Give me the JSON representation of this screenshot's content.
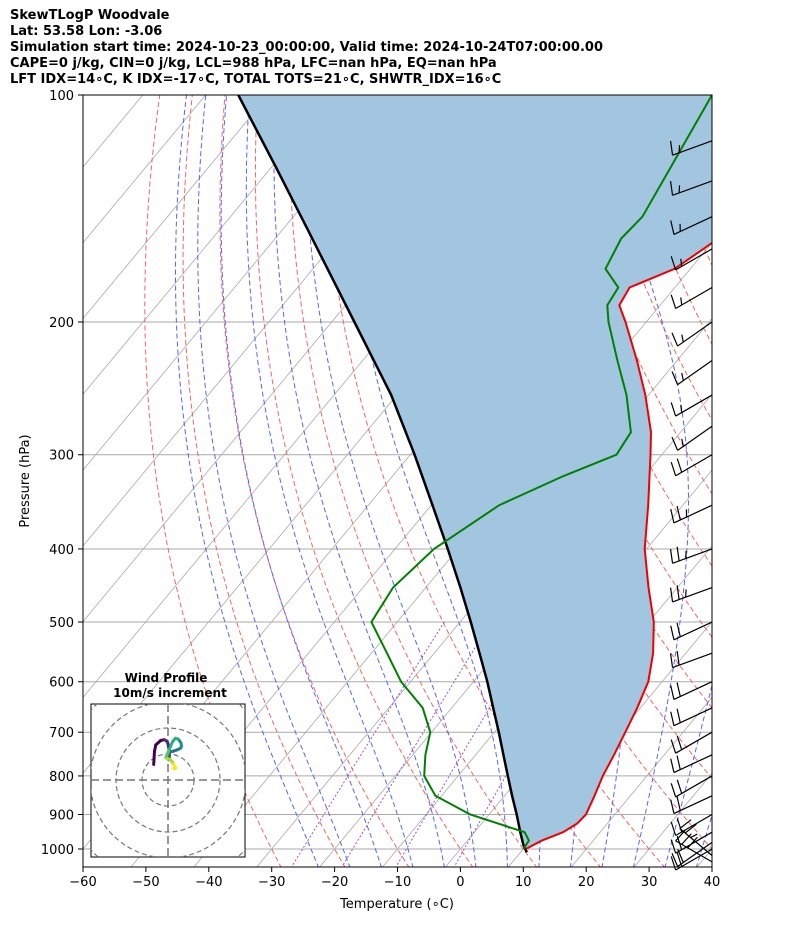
{
  "title": {
    "line1": "SkewTLogP Woodvale",
    "line2": "Lat: 53.58   Lon: -3.06",
    "line3": "Simulation start time: 2024-10-23_00:00:00, Valid time: 2024-10-24T07:00:00.00",
    "line4": "CAPE=0 j/kg, CIN=0 j/kg, LCL=988 hPa, LFC=nan hPa, EQ=nan hPa",
    "line5": "LFT IDX=14∘C, K IDX=-17∘C, TOTAL TOTS=21∘C, SHWTR_IDX=16∘C"
  },
  "chart_data": [
    {
      "type": "line",
      "subtype": "skew-t log-p",
      "xlabel": "Temperature (∘C)",
      "ylabel": "Pressure (hPa)",
      "xlim": [
        -60,
        40
      ],
      "ylim": [
        1050,
        100
      ],
      "y_scale": "log",
      "x_ticks": [
        "−60",
        "−50",
        "−40",
        "−30",
        "−20",
        "−10",
        "0",
        "10",
        "20",
        "30",
        "40"
      ],
      "x_tick_values": [
        -60,
        -50,
        -40,
        -30,
        -20,
        -10,
        0,
        10,
        20,
        30,
        40
      ],
      "y_ticks": [
        "1000",
        "900",
        "800",
        "700",
        "600",
        "500",
        "400",
        "300",
        "200",
        "100"
      ],
      "y_tick_values": [
        1000,
        900,
        800,
        700,
        600,
        500,
        400,
        300,
        200,
        100
      ],
      "grid": true,
      "colors": {
        "temperature": "#ee0000",
        "dewpoint": "#008000",
        "parcel": "#000000",
        "shade": "#a3c6e0",
        "dry_adiabat": "#ee6666",
        "moist_adiabat": "#5566ee",
        "mixing_ratio": "#9955cc",
        "isotherm": "#aaaaaa"
      },
      "series": [
        {
          "key": "temperature",
          "pressure": [
            1000,
            975,
            950,
            925,
            900,
            850,
            800,
            750,
            700,
            650,
            600,
            550,
            500,
            450,
            400,
            350,
            300,
            280,
            250,
            225,
            200,
            190,
            180,
            170,
            150,
            125,
            100
          ],
          "values": [
            10.4,
            11.8,
            14.1,
            15.2,
            15.4,
            14.3,
            13.0,
            12.0,
            10.8,
            9.5,
            7.8,
            4.8,
            0.8,
            -4.6,
            -10.3,
            -15.5,
            -21.8,
            -24.7,
            -30.5,
            -36.4,
            -43.3,
            -46.5,
            -47.2,
            -42.5,
            -38.5,
            -42.2,
            -48.6
          ]
        },
        {
          "key": "dewpoint",
          "pressure": [
            1000,
            975,
            950,
            900,
            850,
            800,
            750,
            700,
            650,
            600,
            550,
            500,
            450,
            400,
            350,
            320,
            300,
            280,
            250,
            225,
            200,
            190,
            180,
            170,
            155,
            145,
            125,
            100
          ],
          "values": [
            10.0,
            9.8,
            8.0,
            -3.0,
            -11.0,
            -15.4,
            -18.0,
            -20.2,
            -24.6,
            -31.5,
            -37.5,
            -44.1,
            -45.2,
            -43.8,
            -39.2,
            -32.8,
            -27.2,
            -27.9,
            -33.5,
            -39.5,
            -46.0,
            -48.4,
            -49.0,
            -53.5,
            -55.0,
            -54.5,
            -56.5,
            -59.5
          ]
        },
        {
          "key": "parcel",
          "pressure": [
            1010,
            1000,
            988,
            950,
            900,
            850,
            800,
            750,
            700,
            650,
            600,
            550,
            500,
            450,
            400,
            350,
            300,
            250,
            200,
            150,
            125,
            100
          ],
          "values": [
            11.0,
            10.3,
            9.5,
            7.3,
            4.4,
            1.2,
            -2.1,
            -5.6,
            -9.3,
            -13.4,
            -17.8,
            -22.8,
            -28.3,
            -34.5,
            -41.6,
            -49.8,
            -59.3,
            -70.9,
            -86.4,
            -106.4,
            -119.1,
            -134.8
          ]
        }
      ],
      "wind_barbs": {
        "pressure": [
          1040,
          1020,
          1000,
          980,
          950,
          900,
          850,
          800,
          750,
          700,
          650,
          600,
          550,
          500,
          450,
          400,
          350,
          300,
          275,
          250,
          225,
          200,
          180,
          160,
          145,
          130,
          115
        ],
        "speed_kt": [
          30,
          25,
          20,
          20,
          20,
          20,
          20,
          20,
          20,
          20,
          20,
          20,
          20,
          20,
          25,
          25,
          25,
          20,
          15,
          15,
          15,
          15,
          15,
          15,
          15,
          15,
          15
        ],
        "direction_deg": [
          300,
          310,
          240,
          235,
          240,
          240,
          245,
          240,
          245,
          240,
          245,
          245,
          250,
          245,
          250,
          250,
          245,
          240,
          235,
          240,
          235,
          235,
          240,
          240,
          245,
          250,
          250
        ]
      }
    },
    {
      "type": "line",
      "subtype": "hodograph",
      "title": "Wind Profile",
      "subtitle": "10m/s increment",
      "ring_increment_ms": 10,
      "colormap": "viridis",
      "u_ms": [
        2.5,
        2.8,
        3.3,
        5.2,
        6.5,
        7.5,
        8.0,
        8.2,
        8.5,
        8.6,
        8.5,
        8.3,
        8.0,
        8.2,
        9.8,
        11.5,
        12.8,
        13.2,
        13.0,
        12.5,
        11.8,
        10.8,
        9.8,
        9.0,
        8.2,
        7.6,
        7.3,
        7.2,
        7.6,
        8.3,
        9.0,
        9.6,
        10.2,
        10.6,
        11.0,
        10.6,
        10.0
      ],
      "v_ms": [
        6.0,
        11.0,
        13.5,
        15.2,
        15.5,
        15.0,
        14.0,
        12.8,
        11.6,
        10.3,
        9.0,
        7.8,
        9.0,
        10.8,
        11.0,
        11.6,
        12.2,
        13.0,
        14.2,
        15.0,
        15.8,
        16.0,
        14.8,
        13.0,
        11.2,
        9.8,
        9.0,
        8.6,
        8.3,
        8.0,
        7.8,
        7.0,
        6.0,
        5.2,
        4.6,
        4.2,
        4.5
      ]
    }
  ]
}
